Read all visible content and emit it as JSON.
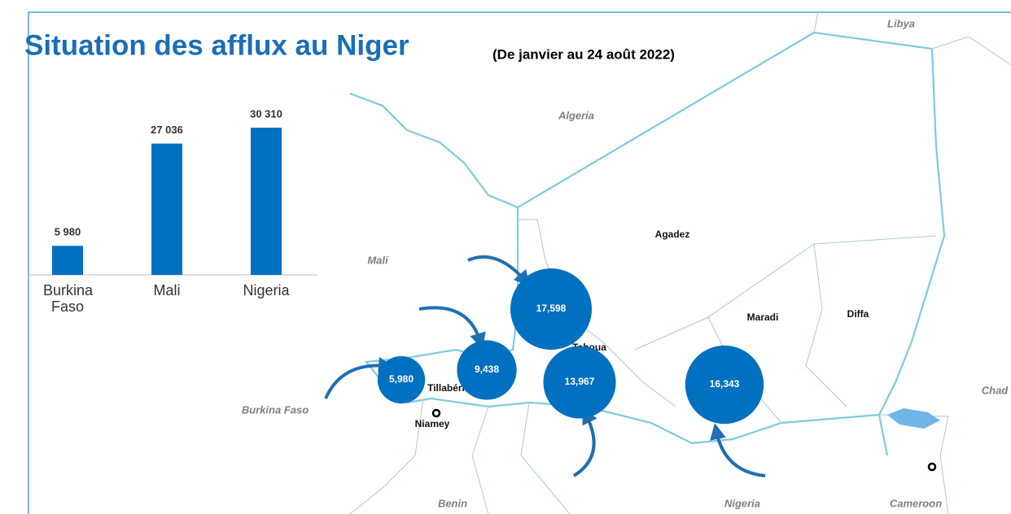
{
  "header": {
    "title": "Situation des afflux au Niger",
    "subtitle": "(De janvier au 24 août 2022)"
  },
  "chart_data": {
    "type": "bar",
    "categories": [
      "Burkina Faso",
      "Mali",
      "Nigeria"
    ],
    "values": [
      5980,
      27036,
      30310
    ],
    "value_labels": [
      "5 980",
      "27 036",
      "30 310"
    ],
    "color": "#0070c0"
  },
  "map": {
    "countries": [
      "Libya",
      "Algeria",
      "Mali",
      "Burkina Faso",
      "Chad",
      "Benin",
      "Nigeria",
      "Cameroon"
    ],
    "regions": [
      "Agadez",
      "Maradi",
      "Diffa",
      "Tahoua",
      "Tillabéri"
    ],
    "cities": [
      "Niamey"
    ],
    "bubbles": {
      "values": [
        17598,
        13967,
        16343,
        9438,
        5980
      ],
      "value_labels": [
        "17,598",
        "13,967",
        "16,343",
        "9,438",
        "5,980"
      ],
      "color": "#0070c0"
    }
  }
}
